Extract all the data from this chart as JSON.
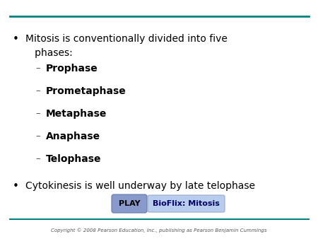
{
  "bg_color": "#ffffff",
  "top_line_color": "#008080",
  "bottom_line_color": "#008080",
  "bullet_color": "#000000",
  "sub_items": [
    "Prophase",
    "Prometaphase",
    "Metaphase",
    "Anaphase",
    "Telophase"
  ],
  "bullet2_text": "Cytokinesis is well underway by late telophase",
  "play_button_color": "#8899cc",
  "play_button_text": "PLAY",
  "play_button_text_color": "#000000",
  "bioflix_box_color": "#b8ccee",
  "bioflix_text": "BioFlix: Mitosis",
  "bioflix_text_color": "#000066",
  "copyright_text": "Copyright © 2008 Pearson Education, Inc., publishing as Pearson Benjamin Cummings",
  "copyright_color": "#555555",
  "dash_color": "#555555",
  "text_color": "#000000"
}
